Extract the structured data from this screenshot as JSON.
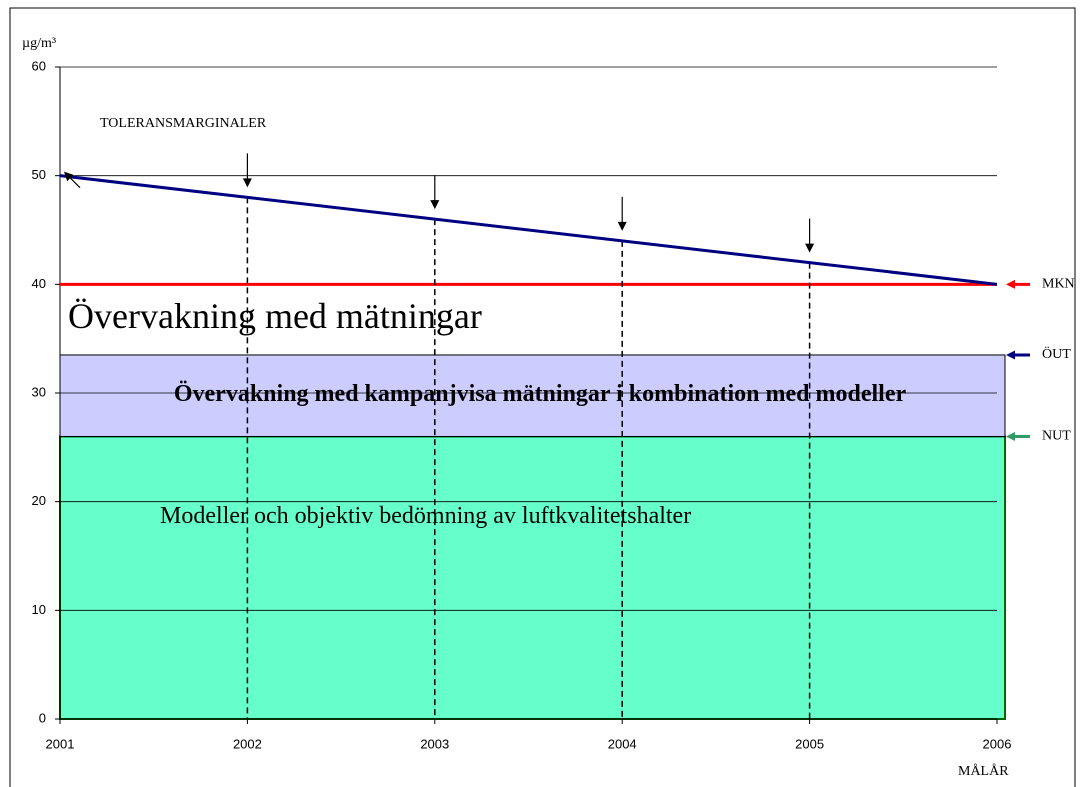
{
  "chart_data": {
    "type": "line",
    "y_label": "µg/m³",
    "x_label": "MÅLÅR",
    "x": [
      2001,
      2002,
      2003,
      2004,
      2005,
      2006
    ],
    "xlim": [
      2001,
      2006
    ],
    "xticks": [
      2001,
      2002,
      2003,
      2004,
      2005,
      2006
    ],
    "ylim": [
      0,
      60
    ],
    "yticks": [
      0,
      10,
      20,
      30,
      40,
      50,
      60
    ],
    "grid": true,
    "series": [
      {
        "name": "TOLERANSMARGINALER",
        "color": "#000080",
        "values": [
          50,
          48,
          46,
          44,
          42,
          40
        ]
      }
    ],
    "zones": [
      {
        "label": "Modeller och objektiv bedömning av  luftkvalitetshalter",
        "from": 0,
        "to": 26,
        "color": "#66ffcc"
      },
      {
        "label": "Övervakning med kampanjvisa mätningar i kombination med modeller",
        "from": 26,
        "to": 33.5,
        "color": "#ccccff"
      },
      {
        "label": "Övervakning med mätningar",
        "from": 33.5,
        "to": 40,
        "color": "#ffffff"
      }
    ],
    "thresholds": [
      {
        "label": "MKN",
        "value": 40,
        "color": "#ff0000"
      },
      {
        "label": "ÖUT",
        "value": 33.5,
        "color": "#000080"
      },
      {
        "label": "NUT",
        "value": 26,
        "color": "#339966"
      }
    ]
  }
}
